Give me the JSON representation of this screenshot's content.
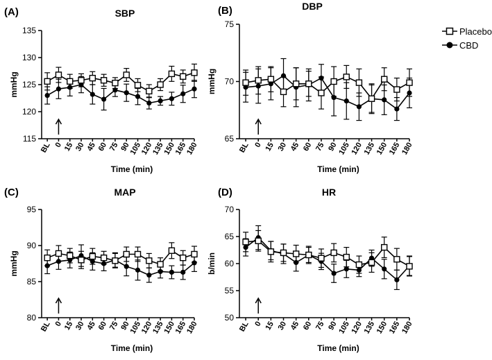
{
  "legend": {
    "placebo_label": "Placebo",
    "cbd_label": "CBD"
  },
  "chart_data": [
    {
      "type": "line",
      "panel_label": "(A)",
      "title": "SBP",
      "xlabel": "Time (min)",
      "ylabel": "mmHg",
      "ylim": [
        115,
        135
      ],
      "yticks": [
        115,
        120,
        125,
        130,
        135
      ],
      "categories": [
        "BL",
        "0",
        "15",
        "30",
        "45",
        "60",
        "75",
        "90",
        "105",
        "120",
        "135",
        "150",
        "165",
        "180"
      ],
      "arrow_at": "0",
      "series": [
        {
          "name": "Placebo",
          "marker": "open-square",
          "values": [
            125.6,
            126.8,
            125.6,
            125.8,
            126.2,
            125.8,
            125.3,
            126.8,
            124.9,
            123.8,
            125.0,
            127.0,
            126.5,
            127.2
          ],
          "errors": [
            1.6,
            1.4,
            1.3,
            1.2,
            1.2,
            1.1,
            1.0,
            1.2,
            1.2,
            1.2,
            1.1,
            1.4,
            1.2,
            1.6
          ]
        },
        {
          "name": "CBD",
          "marker": "filled-circle",
          "values": [
            123.0,
            124.2,
            124.5,
            125.0,
            123.2,
            122.3,
            124.0,
            123.5,
            122.8,
            121.6,
            122.0,
            122.4,
            123.3,
            124.2
          ],
          "errors": [
            1.6,
            1.8,
            1.6,
            1.5,
            1.8,
            2.0,
            1.2,
            1.6,
            1.5,
            1.1,
            0.8,
            1.2,
            1.6,
            1.6
          ]
        }
      ]
    },
    {
      "type": "line",
      "panel_label": "(B)",
      "title": "DBP",
      "xlabel": "Time (min)",
      "ylabel": "mmHg",
      "ylim": [
        65,
        75
      ],
      "yticks": [
        65,
        70,
        75
      ],
      "categories": [
        "BL",
        "0",
        "15",
        "30",
        "45",
        "60",
        "75",
        "90",
        "105",
        "120",
        "135",
        "150",
        "165",
        "180"
      ],
      "arrow_at": "0",
      "series": [
        {
          "name": "Placebo",
          "marker": "open-square",
          "values": [
            69.9,
            70.1,
            70.2,
            69.1,
            69.8,
            69.8,
            69.0,
            70.0,
            70.4,
            69.9,
            68.5,
            70.2,
            69.3,
            69.9
          ],
          "errors": [
            1.1,
            1.2,
            1.1,
            1.3,
            1.4,
            1.1,
            1.4,
            1.3,
            1.0,
            1.2,
            1.2,
            1.0,
            1.0,
            1.2
          ]
        },
        {
          "name": "CBD",
          "marker": "filled-circle",
          "values": [
            69.5,
            69.6,
            69.8,
            70.5,
            69.5,
            69.7,
            70.3,
            68.6,
            68.3,
            67.8,
            68.5,
            68.4,
            67.6,
            69.0
          ],
          "errors": [
            1.3,
            1.5,
            1.4,
            1.5,
            1.7,
            1.4,
            1.2,
            1.6,
            1.6,
            1.2,
            1.3,
            1.3,
            1.0,
            1.3
          ]
        }
      ]
    },
    {
      "type": "line",
      "panel_label": "(C)",
      "title": "MAP",
      "xlabel": "Time (min)",
      "ylabel": "mmHg",
      "ylim": [
        80,
        95
      ],
      "yticks": [
        80,
        85,
        90,
        95
      ],
      "categories": [
        "BL",
        "0",
        "15",
        "30",
        "45",
        "60",
        "75",
        "90",
        "105",
        "120",
        "135",
        "150",
        "165",
        "180"
      ],
      "arrow_at": "0",
      "series": [
        {
          "name": "Placebo",
          "marker": "open-square",
          "values": [
            88.3,
            88.9,
            88.6,
            88.0,
            88.5,
            88.3,
            87.9,
            88.8,
            88.8,
            87.9,
            87.4,
            89.3,
            88.3,
            88.8
          ],
          "errors": [
            1.1,
            1.1,
            1.0,
            1.2,
            1.1,
            0.9,
            1.0,
            1.0,
            1.0,
            1.0,
            0.9,
            1.1,
            1.0,
            1.1
          ]
        },
        {
          "name": "CBD",
          "marker": "filled-circle",
          "values": [
            87.2,
            87.8,
            88.0,
            88.6,
            87.8,
            87.5,
            88.0,
            87.1,
            86.6,
            85.9,
            86.4,
            86.3,
            86.3,
            87.6
          ],
          "errors": [
            1.1,
            1.1,
            1.1,
            1.5,
            1.2,
            1.0,
            1.0,
            1.3,
            1.4,
            1.0,
            0.9,
            0.9,
            1.0,
            1.2
          ]
        }
      ]
    },
    {
      "type": "line",
      "panel_label": "(D)",
      "title": "HR",
      "xlabel": "Time (min)",
      "ylabel": "b/min",
      "ylim": [
        50,
        70
      ],
      "yticks": [
        50,
        55,
        60,
        65,
        70
      ],
      "categories": [
        "BL",
        "0",
        "15",
        "30",
        "45",
        "60",
        "75",
        "90",
        "105",
        "120",
        "135",
        "150",
        "165",
        "180"
      ],
      "arrow_at": "0",
      "series": [
        {
          "name": "Placebo",
          "marker": "open-square",
          "values": [
            64.0,
            64.2,
            62.2,
            62.0,
            61.8,
            61.6,
            61.0,
            62.0,
            61.2,
            59.8,
            60.2,
            63.0,
            60.8,
            59.5
          ],
          "errors": [
            1.8,
            1.9,
            1.9,
            1.6,
            1.6,
            1.4,
            1.7,
            1.7,
            1.8,
            1.6,
            1.8,
            1.9,
            2.0,
            1.8
          ]
        },
        {
          "name": "CBD",
          "marker": "filled-circle",
          "values": [
            63.0,
            64.8,
            62.4,
            61.8,
            60.2,
            61.6,
            60.4,
            58.2,
            59.0,
            58.8,
            61.0,
            59.0,
            57.0,
            59.6
          ],
          "errors": [
            1.6,
            2.2,
            1.7,
            1.8,
            1.6,
            1.6,
            1.5,
            1.7,
            1.6,
            1.2,
            1.5,
            1.8,
            1.8,
            1.8
          ]
        }
      ]
    }
  ]
}
